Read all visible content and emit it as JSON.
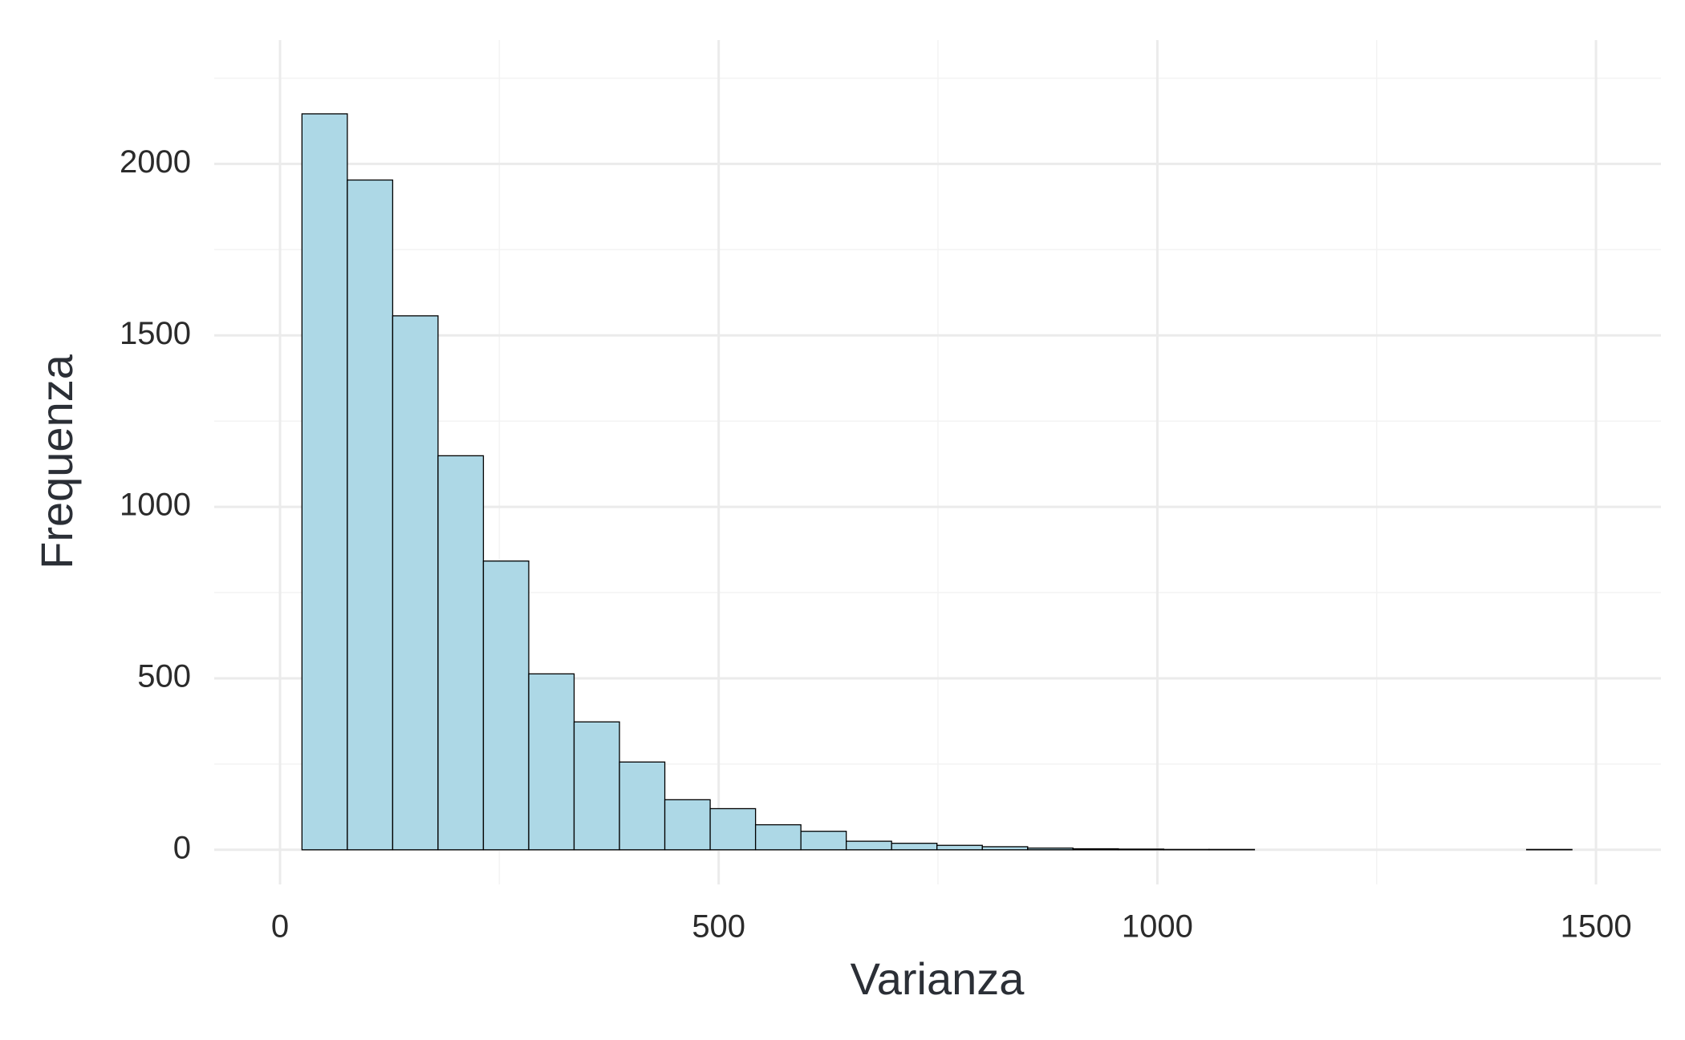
{
  "chart_data": {
    "type": "histogram",
    "x_label": "Varianza",
    "y_label": "Frequenza",
    "bins": [
      25,
      76.7,
      128.4,
      180.1,
      231.8,
      283.5,
      335.2,
      386.9,
      438.6,
      490.3,
      542,
      593.7,
      645.4,
      697.1,
      748.8,
      800.5,
      852.2,
      903.9,
      955.6,
      1007.3,
      1059,
      1110.7,
      1162.4,
      1214.1,
      1265.8,
      1317.5,
      1369.2,
      1420.9,
      1472.6
    ],
    "values": [
      2146,
      1953,
      1557,
      1149,
      842,
      513,
      373,
      256,
      146,
      120,
      73,
      54,
      25,
      19,
      13,
      9,
      5,
      3,
      2,
      1,
      1,
      0,
      0,
      0,
      0,
      0,
      0,
      1
    ],
    "color": "#add8e6",
    "edge_color": "#000000",
    "xlim": [
      -75,
      1574
    ],
    "ylim": [
      -101,
      2361
    ],
    "xticks": [
      0,
      500,
      1000,
      1500
    ],
    "yticks": [
      0,
      500,
      1000,
      1500,
      2000
    ],
    "x_minor_ticks": [
      250,
      750,
      1250
    ],
    "y_minor_ticks": [
      250,
      750,
      1250,
      1750,
      2250
    ],
    "grid": true
  }
}
